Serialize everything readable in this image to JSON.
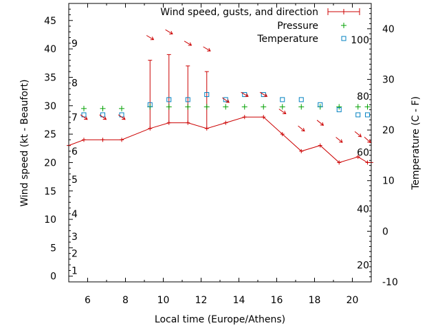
{
  "chart_data": {
    "type": "line",
    "xlabel": "Local time (Europe/Athens)",
    "ylabel_left": "Wind speed (kt - Beaufort)",
    "ylabel_right": "Temperature (C - F)",
    "xlim": [
      5,
      21
    ],
    "ylim_left": [
      -1,
      48
    ],
    "ylim_right": [
      -10,
      45
    ],
    "x_ticks": [
      6,
      8,
      10,
      12,
      14,
      16,
      18,
      20
    ],
    "y_left_ticks": [
      0,
      5,
      10,
      15,
      20,
      25,
      30,
      35,
      40,
      45
    ],
    "y_right_ticks": [
      -10,
      0,
      10,
      20,
      30,
      40
    ],
    "beaufort_labels": [
      {
        "label": "1",
        "kt": 1
      },
      {
        "label": "2",
        "kt": 4
      },
      {
        "label": "3",
        "kt": 7
      },
      {
        "label": "4",
        "kt": 11
      },
      {
        "label": "5",
        "kt": 17
      },
      {
        "label": "6",
        "kt": 22
      },
      {
        "label": "7",
        "kt": 28
      },
      {
        "label": "8",
        "kt": 34
      },
      {
        "label": "9",
        "kt": 41
      }
    ],
    "fahrenheit_labels": [
      {
        "label": "20",
        "c": -6.7
      },
      {
        "label": "40",
        "c": 4.4
      },
      {
        "label": "60",
        "c": 15.6
      },
      {
        "label": "80",
        "c": 26.7
      },
      {
        "label": "100",
        "c": 37.8
      }
    ],
    "legend_position": "top-right",
    "series": [
      {
        "name": "Wind speed, gusts, and direction",
        "color": "#cc0000",
        "x": [
          5,
          5.8,
          6.8,
          7.8,
          9.3,
          10.3,
          11.3,
          12.3,
          13.3,
          14.3,
          15.3,
          16.3,
          17.3,
          18.3,
          19.3,
          20.3,
          20.8,
          21
        ],
        "y": [
          23,
          24,
          24,
          24,
          26,
          27,
          27,
          26,
          27,
          28,
          28,
          25,
          22,
          23,
          20,
          21,
          20,
          20
        ],
        "gusts": [
          null,
          null,
          null,
          null,
          38,
          39,
          37,
          36,
          null,
          null,
          null,
          null,
          null,
          null,
          null,
          null,
          null,
          null
        ]
      },
      {
        "name": "Pressure",
        "color": "#00a000",
        "x": [
          5.8,
          6.8,
          7.8,
          9.3,
          10.3,
          11.3,
          12.3,
          13.3,
          14.3,
          15.3,
          16.3,
          17.3,
          18.3,
          19.3,
          20.3,
          20.8
        ],
        "y": [
          29.5,
          29.5,
          29.5,
          29.8,
          29.8,
          29.8,
          29.8,
          29.8,
          29.8,
          29.8,
          29.8,
          29.8,
          29.8,
          29.8,
          29.8,
          29.8
        ]
      },
      {
        "name": "Temperature",
        "color": "#0080c0",
        "x": [
          5.8,
          6.8,
          7.8,
          9.3,
          10.3,
          11.3,
          12.3,
          13.3,
          14.3,
          15.3,
          16.3,
          17.3,
          18.3,
          19.3,
          20.3,
          20.8
        ],
        "y": [
          23,
          23,
          23,
          25,
          26,
          26,
          27,
          26,
          27,
          27,
          26,
          26,
          25,
          24,
          23,
          23
        ]
      }
    ],
    "direction_arrows": {
      "color": "#cc0000",
      "points": [
        {
          "x": 5.8,
          "kt": 28,
          "dx": 1,
          "dy": 0.7
        },
        {
          "x": 6.8,
          "kt": 28,
          "dx": 1,
          "dy": 0.7
        },
        {
          "x": 7.8,
          "kt": 28,
          "dx": 1,
          "dy": 0.7
        },
        {
          "x": 9.3,
          "kt": 42,
          "dx": 1,
          "dy": 0.6
        },
        {
          "x": 10.3,
          "kt": 43,
          "dx": 1,
          "dy": 0.6
        },
        {
          "x": 11.3,
          "kt": 41,
          "dx": 1,
          "dy": 0.6
        },
        {
          "x": 12.3,
          "kt": 40,
          "dx": 1,
          "dy": 0.6
        },
        {
          "x": 13.3,
          "kt": 31,
          "dx": 1,
          "dy": 0.7
        },
        {
          "x": 14.3,
          "kt": 32,
          "dx": 1,
          "dy": 0.6
        },
        {
          "x": 15.3,
          "kt": 32,
          "dx": 1,
          "dy": 0.6
        },
        {
          "x": 16.3,
          "kt": 29,
          "dx": 1,
          "dy": 0.7
        },
        {
          "x": 17.3,
          "kt": 26,
          "dx": 1,
          "dy": 0.8
        },
        {
          "x": 18.3,
          "kt": 27,
          "dx": 1,
          "dy": 0.8
        },
        {
          "x": 19.3,
          "kt": 24,
          "dx": 1,
          "dy": 0.8
        },
        {
          "x": 20.3,
          "kt": 25,
          "dx": 1,
          "dy": 0.8
        },
        {
          "x": 20.8,
          "kt": 24,
          "dx": 1,
          "dy": 0.9
        }
      ]
    }
  }
}
